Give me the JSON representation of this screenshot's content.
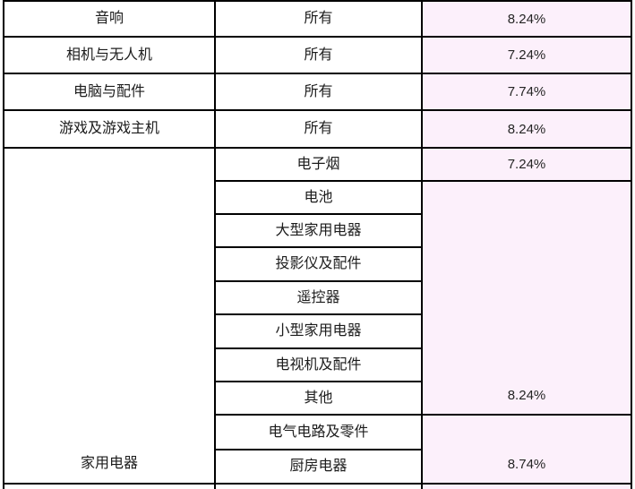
{
  "page": {
    "background": "#ffffff"
  },
  "table": {
    "border_color": "#000000",
    "rate_col_bg": "#fcf0fb",
    "categories": [
      {
        "label": "音响",
        "row_start": 1,
        "span": 1
      },
      {
        "label": "相机与无人机",
        "row_start": 2,
        "span": 1
      },
      {
        "label": "电脑与配件",
        "row_start": 3,
        "span": 1
      },
      {
        "label": "游戏及游戏主机",
        "row_start": 4,
        "span": 1
      },
      {
        "label": "家用电器",
        "row_start": 5,
        "span": 10
      }
    ],
    "subcategories": [
      "所有",
      "所有",
      "所有",
      "所有",
      "电子烟",
      "电池",
      "大型家用电器",
      "投影仪及配件",
      "遥控器",
      "小型家用电器",
      "电视机及配件",
      "其他",
      "电气电路及零件",
      "厨房电器"
    ],
    "rates": [
      {
        "value": "8.24%",
        "row_start": 1,
        "span": 1
      },
      {
        "value": "7.24%",
        "row_start": 2,
        "span": 1
      },
      {
        "value": "7.74%",
        "row_start": 3,
        "span": 1
      },
      {
        "value": "8.24%",
        "row_start": 4,
        "span": 1
      },
      {
        "value": "7.24%",
        "row_start": 5,
        "span": 1
      },
      {
        "value": "8.24%",
        "row_start": 6,
        "span": 7
      },
      {
        "value": "8.74%",
        "row_start": 13,
        "span": 2
      }
    ]
  }
}
